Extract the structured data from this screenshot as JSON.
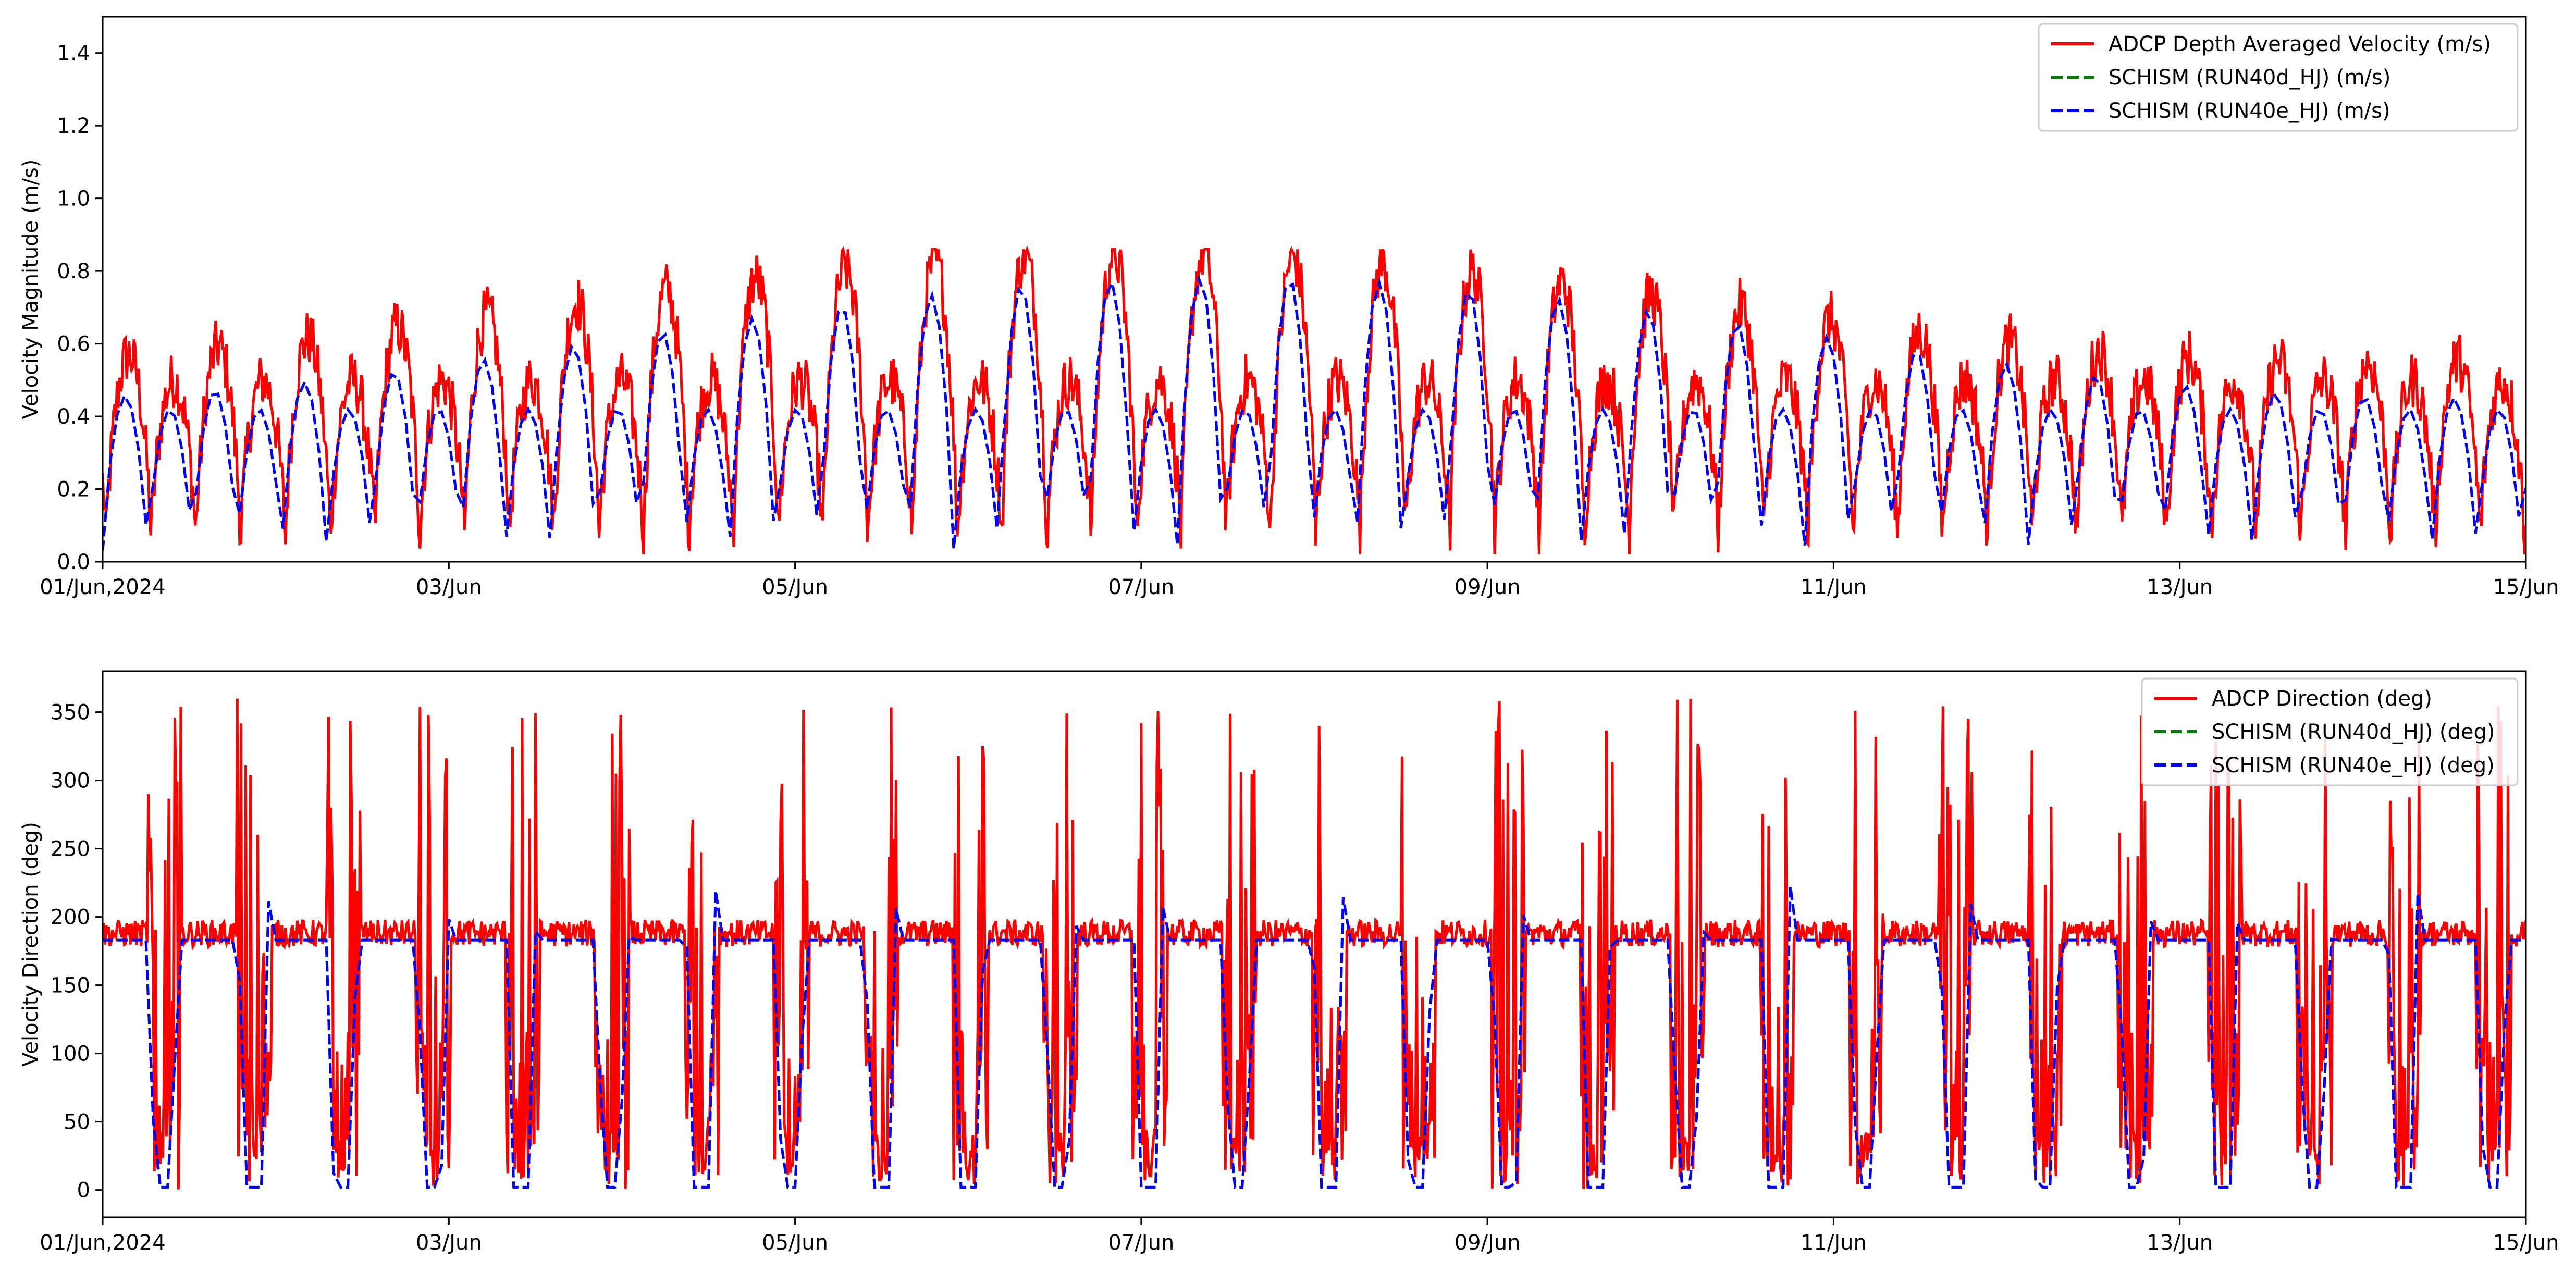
{
  "chart_data": [
    {
      "type": "line",
      "title": "",
      "ylabel": "Velocity Magnitude (m/s)",
      "xlabel": "",
      "ylim": [
        0.0,
        1.5
      ],
      "xlim": [
        "2024-06-01",
        "2024-06-15"
      ],
      "yticks": [
        "0.0",
        "0.2",
        "0.4",
        "0.6",
        "0.8",
        "1.0",
        "1.2",
        "1.4"
      ],
      "xticks": [
        "01/Jun,2024",
        "03/Jun",
        "05/Jun",
        "07/Jun",
        "09/Jun",
        "11/Jun",
        "13/Jun",
        "15/Jun"
      ],
      "legend_position": "upper right",
      "grid": false,
      "tidal_period_hours": 12.42,
      "series": [
        {
          "name": "ADCP Depth Averaged Velocity (m/s)",
          "color": "#ff0000",
          "style": "solid",
          "low": 0.05,
          "high_range": [
            0.55,
            0.85
          ],
          "secondary_peak": 0.5,
          "noise": 0.08
        },
        {
          "name": "SCHISM (RUN40d_HJ) (m/s)",
          "color": "#008000",
          "style": "dashed",
          "low": 0.03,
          "high_range": [
            0.45,
            0.78
          ],
          "secondary_peak": 0.42,
          "noise": 0.0
        },
        {
          "name": "SCHISM (RUN40e_HJ) (m/s)",
          "color": "#0000ff",
          "style": "dashed",
          "low": 0.03,
          "high_range": [
            0.45,
            0.78
          ],
          "secondary_peak": 0.42,
          "noise": 0.0
        }
      ]
    },
    {
      "type": "line",
      "title": "",
      "ylabel": "Velocity Direction (deg)",
      "xlabel": "",
      "ylim": [
        -20,
        380
      ],
      "xlim": [
        "2024-06-01",
        "2024-06-15"
      ],
      "yticks": [
        "0",
        "50",
        "100",
        "150",
        "200",
        "250",
        "300",
        "350"
      ],
      "xticks": [
        "01/Jun,2024",
        "03/Jun",
        "05/Jun",
        "07/Jun",
        "09/Jun",
        "11/Jun",
        "13/Jun",
        "15/Jun"
      ],
      "legend_position": "upper right",
      "grid": false,
      "tidal_period_hours": 12.42,
      "series": [
        {
          "name": "ADCP Direction (deg)",
          "color": "#ff0000",
          "style": "solid",
          "base": 188,
          "noise": 10,
          "spike_max": 360
        },
        {
          "name": "SCHISM (RUN40d_HJ) (deg)",
          "color": "#008000",
          "style": "dashed",
          "base": 183,
          "low": 2
        },
        {
          "name": "SCHISM (RUN40e_HJ) (deg)",
          "color": "#0000ff",
          "style": "dashed",
          "base": 183,
          "low": 2
        }
      ]
    }
  ]
}
